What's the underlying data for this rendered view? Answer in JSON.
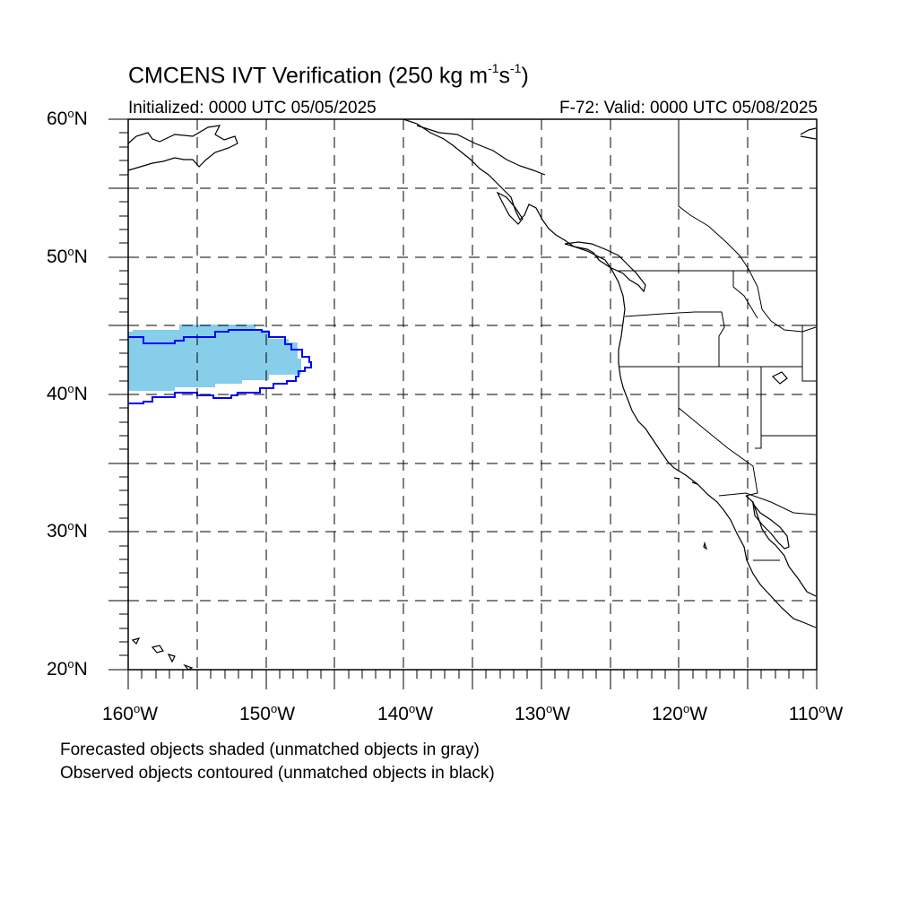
{
  "title": {
    "main": "CMCENS IVT Verification (250 kg m",
    "sup1": "-1",
    "mid": "s",
    "sup2": "-1",
    "end": ")"
  },
  "initialized": "Initialized: 0000 UTC 05/05/2025",
  "valid": "F-72: Valid: 0000 UTC 05/08/2025",
  "lat_labels": [
    "60",
    "50",
    "40",
    "30",
    "20"
  ],
  "lat_suffix": "N",
  "lon_labels": [
    "160",
    "150",
    "140",
    "130",
    "120",
    "110"
  ],
  "lon_suffix": "W",
  "degree_symbol": "o",
  "notes": [
    "Forecasted objects shaded (unmatched objects in gray)",
    "Observed objects contoured (unmatched objects in black)"
  ],
  "colors": {
    "forecast_shade": "#87ceeb",
    "observed_contour": "#0000ff",
    "coastline": "#000000",
    "grid": "#000000"
  },
  "map_extent": {
    "lon_min": -160,
    "lon_max": -110,
    "lat_min": 20,
    "lat_max": 60
  }
}
